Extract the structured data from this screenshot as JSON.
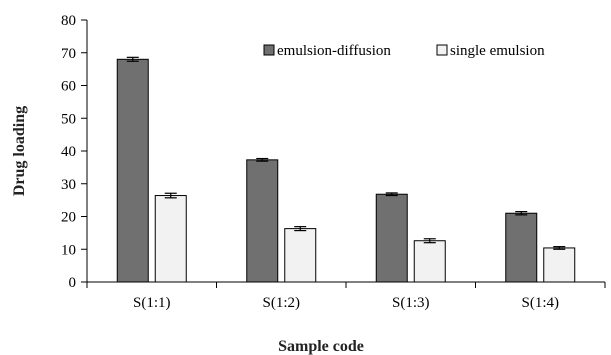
{
  "chart_data": {
    "type": "bar",
    "categories": [
      "S(1:1)",
      "S(1:2)",
      "S(1:3)",
      "S(1:4)"
    ],
    "series": [
      {
        "name": "emulsion-diffusion",
        "values": [
          68.0,
          37.3,
          26.8,
          21.0
        ],
        "errors": [
          0.6,
          0.4,
          0.4,
          0.5
        ],
        "color": "#707070"
      },
      {
        "name": "single emulsion",
        "values": [
          26.4,
          16.3,
          12.6,
          10.4
        ],
        "errors": [
          0.7,
          0.6,
          0.6,
          0.4
        ],
        "color": "#f2f2f2"
      }
    ],
    "title": "",
    "xlabel": "Sample code",
    "ylabel": "Drug loading",
    "ylim": [
      0,
      80
    ],
    "yticks": [
      0,
      10,
      20,
      30,
      40,
      50,
      60,
      70,
      80
    ],
    "grid": false,
    "legend_position": "top-right"
  }
}
